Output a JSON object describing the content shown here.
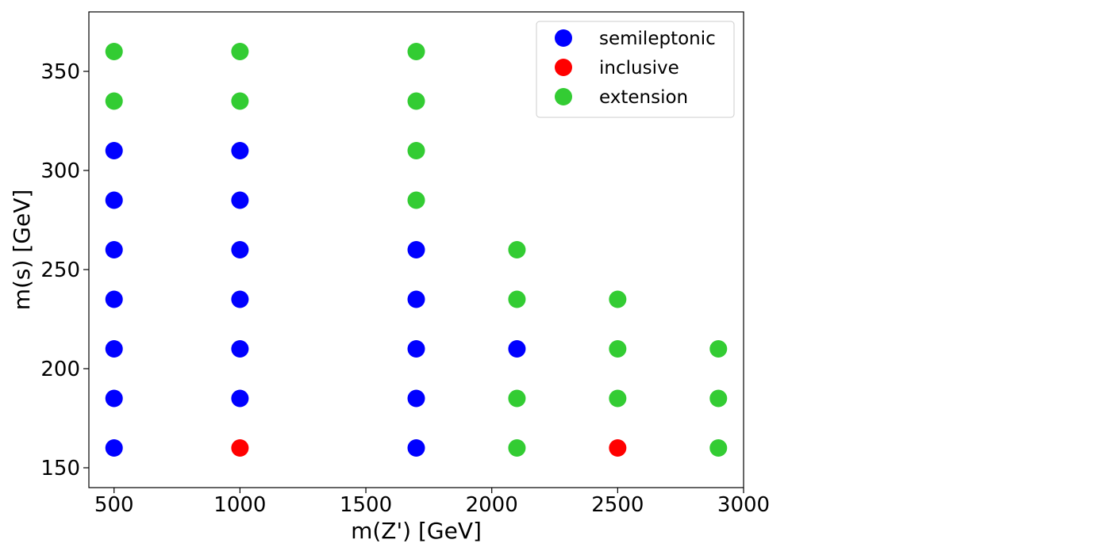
{
  "chart_data": {
    "type": "scatter",
    "xlabel": "m(Z') [GeV]",
    "ylabel": "m(s) [GeV]",
    "xlim": [
      400,
      3000
    ],
    "ylim": [
      140,
      380
    ],
    "xticks": [
      500,
      1000,
      1500,
      2000,
      2500,
      3000
    ],
    "yticks": [
      150,
      200,
      250,
      300,
      350
    ],
    "grid": false,
    "legend_position": "top-right",
    "series": [
      {
        "name": "semileptonic",
        "color": "#0000ff",
        "points": [
          [
            500,
            160
          ],
          [
            500,
            185
          ],
          [
            500,
            210
          ],
          [
            500,
            235
          ],
          [
            500,
            260
          ],
          [
            500,
            285
          ],
          [
            500,
            310
          ],
          [
            1000,
            185
          ],
          [
            1000,
            210
          ],
          [
            1000,
            235
          ],
          [
            1000,
            260
          ],
          [
            1000,
            285
          ],
          [
            1000,
            310
          ],
          [
            1700,
            160
          ],
          [
            1700,
            185
          ],
          [
            1700,
            210
          ],
          [
            1700,
            235
          ],
          [
            1700,
            260
          ],
          [
            2100,
            210
          ]
        ]
      },
      {
        "name": "inclusive",
        "color": "#ff0000",
        "points": [
          [
            1000,
            160
          ],
          [
            2500,
            160
          ]
        ]
      },
      {
        "name": "extension",
        "color": "#33cc33",
        "points": [
          [
            500,
            335
          ],
          [
            500,
            360
          ],
          [
            1000,
            335
          ],
          [
            1000,
            360
          ],
          [
            1700,
            285
          ],
          [
            1700,
            310
          ],
          [
            1700,
            335
          ],
          [
            1700,
            360
          ],
          [
            2100,
            160
          ],
          [
            2100,
            185
          ],
          [
            2100,
            235
          ],
          [
            2100,
            260
          ],
          [
            2500,
            185
          ],
          [
            2500,
            210
          ],
          [
            2500,
            235
          ],
          [
            2900,
            160
          ],
          [
            2900,
            185
          ],
          [
            2900,
            210
          ]
        ]
      }
    ]
  }
}
